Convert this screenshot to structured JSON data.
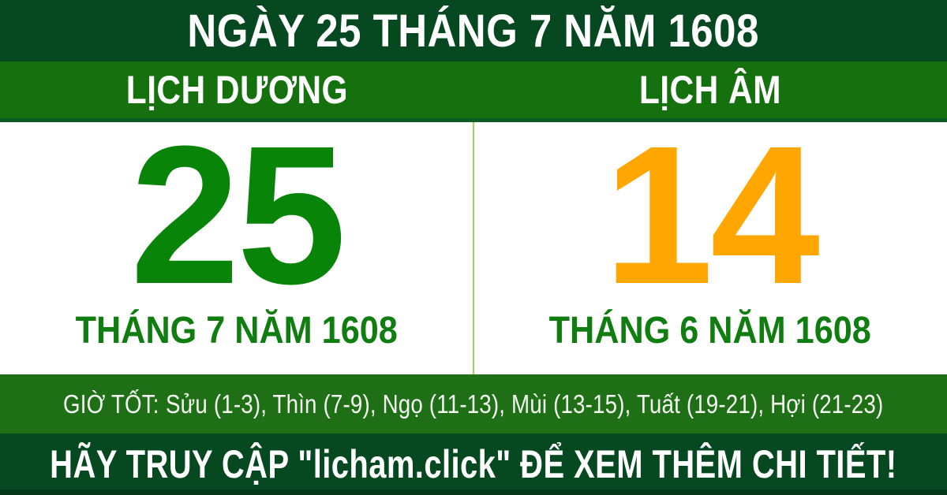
{
  "header": {
    "title": "NGÀY 25 THÁNG 7 NĂM 1608"
  },
  "calendar": {
    "solar": {
      "label": "LỊCH DƯƠNG",
      "day": "25",
      "month_year": "THÁNG 7 NĂM 1608"
    },
    "lunar": {
      "label": "LỊCH ÂM",
      "day": "14",
      "month_year": "THÁNG 6 NĂM 1608"
    }
  },
  "good_hours": {
    "label": "GIỜ TỐT:",
    "value": "Sửu (1-3), Thìn (7-9), Ngọ (11-13), Mùi (13-15), Tuất (19-21), Hợi (21-23)"
  },
  "footer": {
    "message": "HÃY TRUY CẬP \"licham.click\" ĐỂ XEM THÊM CHI TIẾT!"
  },
  "colors": {
    "dark_green": "#06481f",
    "medium_green": "#15700e",
    "hours_green": "#1e6f15",
    "solar_day_green": "#088408",
    "lunar_day_orange": "#ffa600",
    "month_label_green": "#0f7d0f",
    "divider_light_green": "#9cd55f",
    "text_white": "#ffffff"
  }
}
